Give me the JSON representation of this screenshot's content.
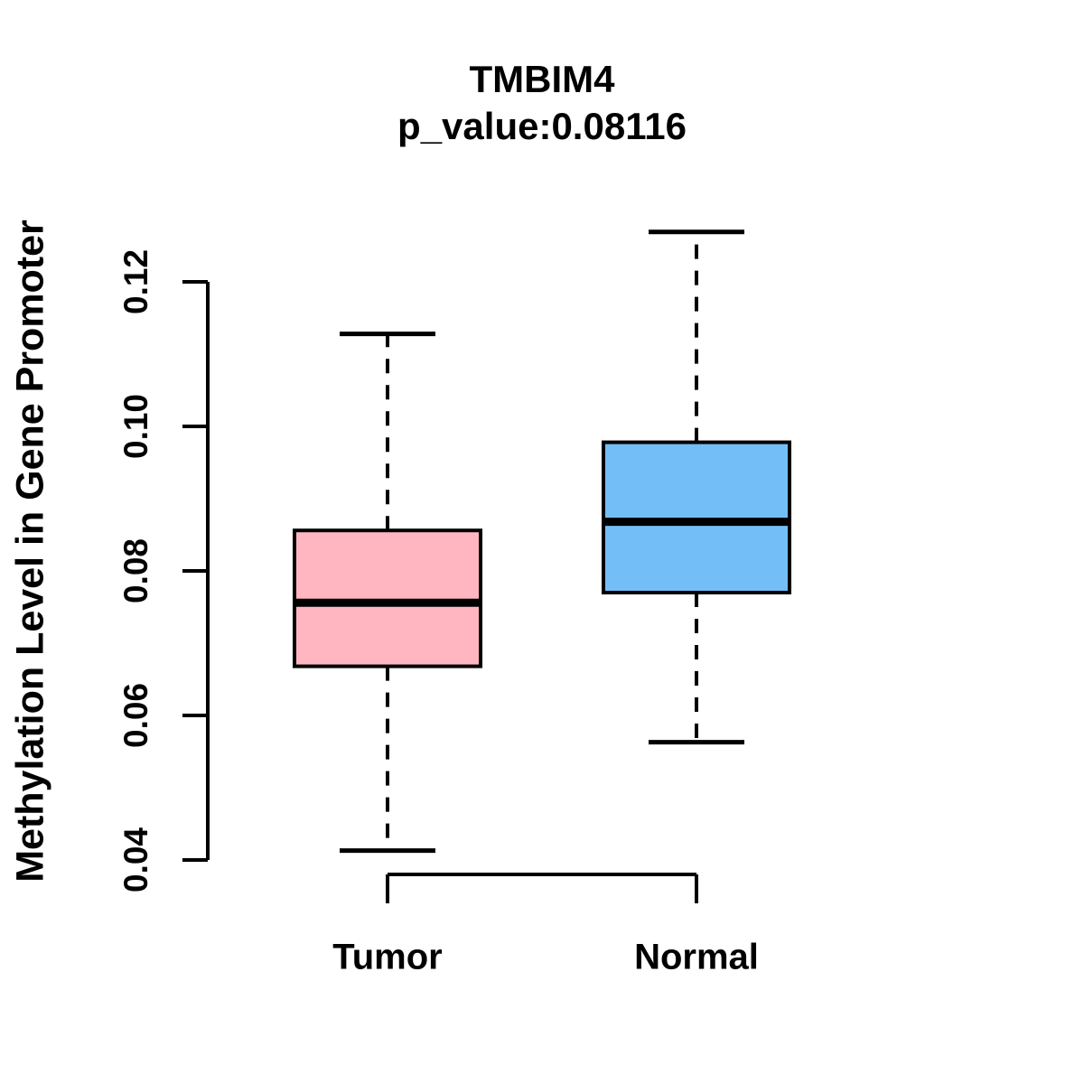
{
  "title": {
    "line1": "TMBIM4",
    "line2": "p_value:0.08116"
  },
  "chart_data": {
    "type": "boxplot",
    "title": "TMBIM4",
    "subtitle": "p_value:0.08116",
    "gene": "TMBIM4",
    "p_value": 0.08116,
    "ylabel": "Methylation Level in Gene Promoter",
    "xlabel": "",
    "categories": [
      "Tumor",
      "Normal"
    ],
    "series": [
      {
        "name": "Tumor",
        "whisker_low": 0.0413,
        "q1": 0.0668,
        "median": 0.0756,
        "q3": 0.0856,
        "whisker_high": 0.1128,
        "outliers": [],
        "fill_color": "#FFB6C1"
      },
      {
        "name": "Normal",
        "whisker_low": 0.0563,
        "q1": 0.077,
        "median": 0.0868,
        "q3": 0.0978,
        "whisker_high": 0.1269,
        "outliers": [],
        "fill_color": "#74BEF7"
      }
    ],
    "y_axis": {
      "ticks": [
        0.04,
        0.06,
        0.08,
        0.1,
        0.12
      ],
      "tick_labels": [
        "0.04",
        "0.06",
        "0.08",
        "0.10",
        "0.12"
      ],
      "range": [
        0.04,
        0.12
      ]
    },
    "grid": false,
    "legend": false,
    "stroke_color": "#000000",
    "background_color": "#FFFFFF"
  }
}
